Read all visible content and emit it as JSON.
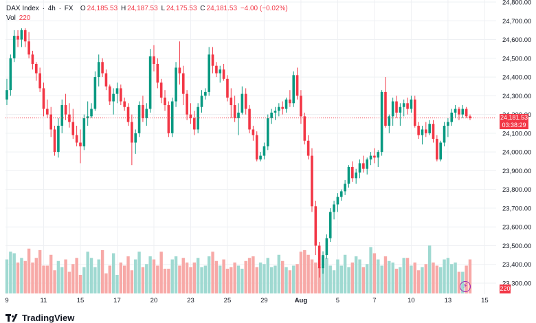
{
  "legend": {
    "symbol": "DAX Index",
    "interval": "4h",
    "source": "FX",
    "open_label": "O",
    "open": "24,185.53",
    "high_label": "H",
    "high": "24,187.53",
    "low_label": "L",
    "low": "24,175.53",
    "close_label": "C",
    "close": "24,181.53",
    "change": "−4.00 (−0.02%)",
    "vol_label": "Vol",
    "vol": "220"
  },
  "price_tag": {
    "price": "24,181.53",
    "countdown": "03:38:29",
    "color": "#f23645"
  },
  "vol_tag": {
    "value": "220",
    "color": "#f23645"
  },
  "brand": "TradingView",
  "colors": {
    "up": "#089981",
    "down": "#f23645",
    "up_vol": "#9fd9d1",
    "down_vol": "#f7a9a7",
    "grid": "#eef0f3",
    "axis_text": "#131722"
  },
  "chart_data": {
    "type": "candlestick",
    "title": "DAX Index · 4h · FX",
    "y_axis": {
      "min": 23250,
      "max": 24800,
      "ticks": [
        23300,
        23400,
        23500,
        23600,
        23700,
        23800,
        23900,
        24000,
        24100,
        24200,
        24300,
        24400,
        24500,
        24600,
        24700,
        24800
      ],
      "tick_labels": [
        "23,300.00",
        "23,400.00",
        "23,500.00",
        "23,600.00",
        "23,700.00",
        "23,800.00",
        "23,900.00",
        "24,000.00",
        "24,100.00",
        "24,200.00",
        "24,300.00",
        "24,400.00",
        "24,500.00",
        "24,600.00",
        "24,700.00",
        "24,800.00"
      ]
    },
    "x_axis": {
      "labels": [
        "9",
        "11",
        "15",
        "17",
        "20",
        "23",
        "25",
        "29",
        "Aug",
        "5",
        "7",
        "10",
        "13",
        "15"
      ],
      "label_bar_index": [
        0,
        10,
        20,
        30,
        40,
        50,
        60,
        70,
        80,
        90,
        100,
        110,
        120,
        130
      ]
    },
    "current_price": 24181.53,
    "candles_ohlc": [
      [
        24280,
        24390,
        24250,
        24330
      ],
      [
        24330,
        24520,
        24300,
        24500
      ],
      [
        24500,
        24650,
        24480,
        24620
      ],
      [
        24620,
        24650,
        24560,
        24600
      ],
      [
        24600,
        24660,
        24560,
        24650
      ],
      [
        24650,
        24660,
        24560,
        24590
      ],
      [
        24590,
        24640,
        24500,
        24520
      ],
      [
        24520,
        24540,
        24440,
        24470
      ],
      [
        24470,
        24480,
        24380,
        24420
      ],
      [
        24420,
        24450,
        24320,
        24340
      ],
      [
        24340,
        24370,
        24190,
        24230
      ],
      [
        24230,
        24280,
        24180,
        24200
      ],
      [
        24200,
        24240,
        24080,
        24120
      ],
      [
        24120,
        24140,
        23980,
        24000
      ],
      [
        24000,
        24180,
        23970,
        24140
      ],
      [
        24140,
        24280,
        24100,
        24250
      ],
      [
        24250,
        24310,
        24170,
        24200
      ],
      [
        24200,
        24260,
        24130,
        24160
      ],
      [
        24160,
        24230,
        24070,
        24090
      ],
      [
        24090,
        24140,
        24030,
        24050
      ],
      [
        24050,
        24120,
        23940,
        24030
      ],
      [
        24030,
        24200,
        24010,
        24180
      ],
      [
        24180,
        24270,
        24140,
        24190
      ],
      [
        24190,
        24260,
        24180,
        24230
      ],
      [
        24230,
        24430,
        24220,
        24400
      ],
      [
        24400,
        24520,
        24350,
        24480
      ],
      [
        24480,
        24500,
        24400,
        24420
      ],
      [
        24420,
        24440,
        24330,
        24350
      ],
      [
        24350,
        24360,
        24250,
        24270
      ],
      [
        24270,
        24340,
        24200,
        24310
      ],
      [
        24310,
        24370,
        24260,
        24340
      ],
      [
        24340,
        24360,
        24250,
        24270
      ],
      [
        24270,
        24290,
        24220,
        24240
      ],
      [
        24240,
        24260,
        24140,
        24160
      ],
      [
        24160,
        24200,
        23930,
        24050
      ],
      [
        24050,
        24120,
        23990,
        24100
      ],
      [
        24100,
        24270,
        24080,
        24250
      ],
      [
        24250,
        24300,
        24160,
        24180
      ],
      [
        24180,
        24260,
        24140,
        24230
      ],
      [
        24230,
        24550,
        24210,
        24510
      ],
      [
        24510,
        24570,
        24430,
        24470
      ],
      [
        24470,
        24500,
        24340,
        24370
      ],
      [
        24370,
        24390,
        24260,
        24290
      ],
      [
        24290,
        24330,
        24220,
        24250
      ],
      [
        24250,
        24270,
        24080,
        24100
      ],
      [
        24100,
        24290,
        24080,
        24270
      ],
      [
        24270,
        24480,
        24240,
        24450
      ],
      [
        24450,
        24590,
        24360,
        24420
      ],
      [
        24420,
        24460,
        24250,
        24310
      ],
      [
        24310,
        24330,
        24170,
        24200
      ],
      [
        24200,
        24260,
        24150,
        24180
      ],
      [
        24180,
        24220,
        24090,
        24120
      ],
      [
        24120,
        24260,
        24100,
        24240
      ],
      [
        24240,
        24330,
        24210,
        24300
      ],
      [
        24300,
        24340,
        24280,
        24320
      ],
      [
        24320,
        24560,
        24300,
        24520
      ],
      [
        24520,
        24560,
        24420,
        24460
      ],
      [
        24460,
        24480,
        24400,
        24420
      ],
      [
        24420,
        24460,
        24370,
        24440
      ],
      [
        24440,
        24470,
        24380,
        24390
      ],
      [
        24390,
        24410,
        24270,
        24290
      ],
      [
        24290,
        24340,
        24180,
        24250
      ],
      [
        24250,
        24300,
        24160,
        24180
      ],
      [
        24180,
        24260,
        24090,
        24210
      ],
      [
        24210,
        24350,
        24200,
        24310
      ],
      [
        24310,
        24340,
        24200,
        24230
      ],
      [
        24230,
        24250,
        24100,
        24120
      ],
      [
        24120,
        24140,
        24060,
        24090
      ],
      [
        24090,
        24110,
        23950,
        23960
      ],
      [
        23960,
        24000,
        23950,
        23980
      ],
      [
        23980,
        24050,
        23960,
        24030
      ],
      [
        24030,
        24200,
        24010,
        24180
      ],
      [
        24180,
        24230,
        24150,
        24210
      ],
      [
        24210,
        24240,
        24170,
        24220
      ],
      [
        24220,
        24260,
        24190,
        24240
      ],
      [
        24240,
        24270,
        24200,
        24230
      ],
      [
        24230,
        24290,
        24210,
        24280
      ],
      [
        24280,
        24330,
        24240,
        24260
      ],
      [
        24260,
        24430,
        24240,
        24410
      ],
      [
        24410,
        24450,
        24280,
        24300
      ],
      [
        24300,
        24330,
        24150,
        24190
      ],
      [
        24190,
        24210,
        24040,
        24060
      ],
      [
        24060,
        24090,
        23960,
        23980
      ],
      [
        23980,
        24020,
        23680,
        23710
      ],
      [
        23710,
        23740,
        23450,
        23500
      ],
      [
        23500,
        23520,
        23330,
        23380
      ],
      [
        23380,
        23470,
        23350,
        23450
      ],
      [
        23450,
        23560,
        23430,
        23540
      ],
      [
        23540,
        23700,
        23520,
        23680
      ],
      [
        23680,
        23740,
        23640,
        23720
      ],
      [
        23720,
        23780,
        23680,
        23760
      ],
      [
        23760,
        23800,
        23740,
        23790
      ],
      [
        23790,
        23850,
        23770,
        23830
      ],
      [
        23830,
        23930,
        23810,
        23920
      ],
      [
        23920,
        23950,
        23840,
        23860
      ],
      [
        23860,
        23910,
        23830,
        23890
      ],
      [
        23890,
        23960,
        23860,
        23940
      ],
      [
        23940,
        23980,
        23890,
        23910
      ],
      [
        23910,
        23970,
        23880,
        23960
      ],
      [
        23960,
        24000,
        23930,
        23980
      ],
      [
        23980,
        24020,
        23940,
        23970
      ],
      [
        23970,
        24010,
        23920,
        24000
      ],
      [
        24000,
        24330,
        23980,
        24320
      ],
      [
        24320,
        24400,
        24130,
        24140
      ],
      [
        24140,
        24200,
        24100,
        24190
      ],
      [
        24190,
        24290,
        24140,
        24270
      ],
      [
        24270,
        24300,
        24180,
        24210
      ],
      [
        24210,
        24260,
        24140,
        24240
      ],
      [
        24240,
        24280,
        24190,
        24260
      ],
      [
        24260,
        24290,
        24200,
        24230
      ],
      [
        24230,
        24300,
        24210,
        24280
      ],
      [
        24280,
        24300,
        24130,
        24140
      ],
      [
        24140,
        24160,
        24070,
        24090
      ],
      [
        24090,
        24140,
        24040,
        24120
      ],
      [
        24120,
        24160,
        24080,
        24100
      ],
      [
        24100,
        24170,
        24090,
        24150
      ],
      [
        24150,
        24170,
        24050,
        24070
      ],
      [
        24070,
        24090,
        23950,
        23960
      ],
      [
        23960,
        24060,
        23950,
        24050
      ],
      [
        24050,
        24160,
        24030,
        24140
      ],
      [
        24140,
        24180,
        24080,
        24160
      ],
      [
        24160,
        24230,
        24140,
        24210
      ],
      [
        24210,
        24250,
        24180,
        24230
      ],
      [
        24230,
        24240,
        24170,
        24200
      ],
      [
        24200,
        24250,
        24180,
        24230
      ],
      [
        24230,
        24240,
        24180,
        24190
      ],
      [
        24190,
        24200,
        24170,
        24180
      ]
    ],
    "volume": [
      220,
      270,
      260,
      200,
      230,
      210,
      290,
      200,
      230,
      280,
      180,
      180,
      250,
      150,
      210,
      170,
      220,
      140,
      190,
      230,
      120,
      170,
      270,
      230,
      170,
      220,
      280,
      130,
      180,
      260,
      120,
      200,
      180,
      240,
      150,
      220,
      270,
      170,
      190,
      240,
      220,
      180,
      270,
      160,
      160,
      220,
      240,
      180,
      230,
      200,
      170,
      200,
      230,
      170,
      180,
      240,
      270,
      210,
      180,
      220,
      160,
      170,
      200,
      180,
      160,
      210,
      230,
      240,
      170,
      200,
      190,
      230,
      170,
      180,
      250,
      210,
      170,
      150,
      180,
      190,
      270,
      280,
      250,
      220,
      200,
      170,
      240,
      230,
      180,
      150,
      220,
      180,
      250,
      170,
      200,
      240,
      220,
      170,
      190,
      300,
      260,
      220,
      180,
      240,
      210,
      200,
      160,
      170,
      230,
      230,
      180,
      200,
      150,
      170,
      190,
      310,
      200,
      180,
      170,
      220,
      230,
      190,
      200,
      140,
      140,
      180,
      220
    ]
  }
}
